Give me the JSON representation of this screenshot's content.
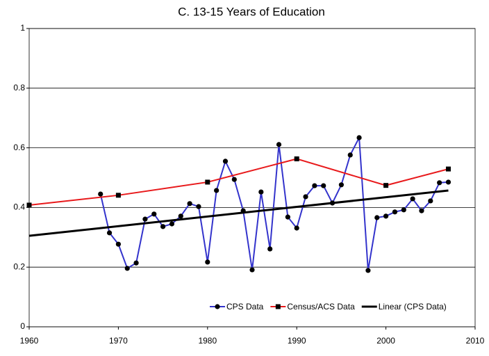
{
  "chart_data": {
    "type": "line",
    "title": "C. 13-15 Years of Education",
    "xlim": [
      1960,
      2010
    ],
    "xticks": [
      1960,
      1970,
      1980,
      1990,
      2000,
      2010
    ],
    "ylim": [
      0,
      1
    ],
    "yticks": [
      0,
      0.2,
      0.4,
      0.6,
      0.8,
      1
    ],
    "grid": true,
    "legend": "bottom-right",
    "series": [
      {
        "name": "CPS Data",
        "color": "#3333cc",
        "marker": "circle",
        "x": [
          1968,
          1969,
          1970,
          1971,
          1972,
          1973,
          1974,
          1975,
          1976,
          1977,
          1978,
          1979,
          1980,
          1981,
          1982,
          1983,
          1984,
          1985,
          1986,
          1987,
          1988,
          1989,
          1990,
          1991,
          1992,
          1993,
          1994,
          1995,
          1996,
          1997,
          1998,
          1999,
          2000,
          2001,
          2002,
          2003,
          2004,
          2005,
          2006,
          2007
        ],
        "values": [
          0.445,
          0.315,
          0.277,
          0.196,
          0.214,
          0.361,
          0.378,
          0.336,
          0.345,
          0.371,
          0.413,
          0.403,
          0.217,
          0.457,
          0.555,
          0.494,
          0.389,
          0.191,
          0.452,
          0.261,
          0.611,
          0.368,
          0.331,
          0.436,
          0.473,
          0.473,
          0.415,
          0.476,
          0.576,
          0.634,
          0.189,
          0.366,
          0.371,
          0.385,
          0.392,
          0.429,
          0.389,
          0.422,
          0.483,
          0.485
        ]
      },
      {
        "name": "Census/ACS Data",
        "color": "#e8191b",
        "marker": "square",
        "x": [
          1960,
          1970,
          1980,
          1990,
          2000,
          2007
        ],
        "values": [
          0.408,
          0.441,
          0.485,
          0.563,
          0.474,
          0.529
        ]
      },
      {
        "name": "Linear (CPS Data)",
        "color": "#000000",
        "marker": "none",
        "x": [
          1960,
          2007
        ],
        "values": [
          0.305,
          0.457
        ]
      }
    ]
  }
}
